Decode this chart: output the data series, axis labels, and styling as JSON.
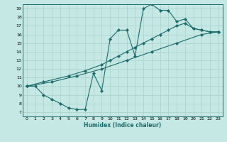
{
  "bg_color": "#c5e8e5",
  "line_color": "#1a6b6b",
  "grid_color": "#aed4d0",
  "xlabel": "Humidex (Indice chaleur)",
  "xlim": [
    -0.5,
    23.5
  ],
  "ylim": [
    6.5,
    19.5
  ],
  "xticks": [
    0,
    1,
    2,
    3,
    4,
    5,
    6,
    7,
    8,
    9,
    10,
    11,
    12,
    13,
    14,
    15,
    16,
    17,
    18,
    19,
    20,
    21,
    22,
    23
  ],
  "yticks": [
    7,
    8,
    9,
    10,
    11,
    12,
    13,
    14,
    15,
    16,
    17,
    18,
    19
  ],
  "curve1_x": [
    0,
    1,
    2,
    3,
    4,
    5,
    6,
    7,
    8,
    9,
    10,
    11,
    12,
    13,
    14,
    15,
    16,
    17,
    18,
    19,
    20,
    21,
    22,
    23
  ],
  "curve1_y": [
    10.0,
    10.0,
    9.0,
    8.5,
    8.0,
    7.5,
    7.3,
    7.3,
    11.5,
    9.5,
    15.5,
    16.5,
    16.5,
    13.5,
    19.0,
    19.5,
    18.8,
    18.8,
    17.5,
    17.8,
    16.7,
    16.5,
    16.3,
    16.3
  ],
  "curve2_x": [
    0,
    2,
    5,
    7,
    9,
    10,
    11,
    12,
    13,
    14,
    15,
    16,
    17,
    18,
    19,
    20,
    21,
    22,
    23
  ],
  "curve2_y": [
    10.0,
    10.5,
    11.2,
    11.8,
    12.5,
    13.0,
    13.5,
    14.0,
    14.5,
    15.0,
    15.5,
    16.0,
    16.5,
    17.0,
    17.3,
    16.7,
    16.5,
    16.3,
    16.3
  ],
  "curve3_x": [
    0,
    3,
    6,
    9,
    12,
    15,
    18,
    21,
    23
  ],
  "curve3_y": [
    10.0,
    10.5,
    11.2,
    12.0,
    13.0,
    14.0,
    15.0,
    16.0,
    16.3
  ]
}
